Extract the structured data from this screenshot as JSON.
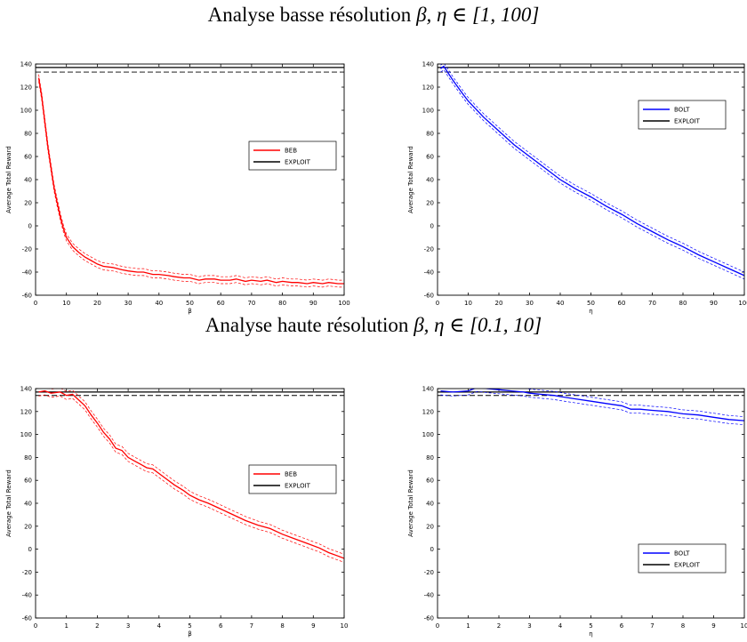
{
  "sections": [
    {
      "prefix": "Analyse basse résolution",
      "math": "β, η ∈ [1, 100]"
    },
    {
      "prefix": "Analyse haute résolution",
      "math": "β, η ∈ [0.1, 10]"
    }
  ],
  "chart_data": [
    {
      "type": "line",
      "xlabel": "β",
      "ylabel": "Average Total Reward",
      "xlim": [
        0,
        100
      ],
      "ylim": [
        -60,
        140
      ],
      "xticks": [
        0,
        10,
        20,
        30,
        40,
        50,
        60,
        70,
        80,
        90,
        100
      ],
      "yticks": [
        -60,
        -40,
        -20,
        0,
        20,
        40,
        60,
        80,
        100,
        120,
        140
      ],
      "legend": {
        "placement": "right",
        "entries": [
          "BEB",
          "EXPLOIT"
        ]
      },
      "exploit": {
        "mean": 137,
        "upper": 140.5,
        "lower": 133
      },
      "series": [
        {
          "name": "BEB",
          "color": "#ff0000",
          "band": 3,
          "x": [
            1,
            2,
            3,
            4,
            5,
            6,
            7,
            8,
            9,
            10,
            12,
            14,
            16,
            18,
            20,
            22,
            25,
            28,
            30,
            33,
            35,
            38,
            40,
            43,
            45,
            48,
            50,
            53,
            55,
            58,
            60,
            63,
            65,
            68,
            70,
            73,
            75,
            78,
            80,
            83,
            85,
            88,
            90,
            93,
            95,
            98,
            100
          ],
          "y": [
            128,
            112,
            90,
            68,
            50,
            33,
            20,
            8,
            -2,
            -10,
            -18,
            -23,
            -27,
            -30,
            -33,
            -35,
            -36,
            -38,
            -39,
            -40,
            -40,
            -42,
            -42,
            -43,
            -44,
            -45,
            -45,
            -47,
            -46,
            -46,
            -47,
            -47,
            -46,
            -48,
            -47,
            -48,
            -47,
            -49,
            -48,
            -49,
            -49,
            -50,
            -49,
            -50,
            -49,
            -50,
            -50
          ]
        }
      ]
    },
    {
      "type": "line",
      "xlabel": "η",
      "ylabel": "Average Total Reward",
      "xlim": [
        0,
        100
      ],
      "ylim": [
        -60,
        140
      ],
      "xticks": [
        0,
        10,
        20,
        30,
        40,
        50,
        60,
        70,
        80,
        90,
        100
      ],
      "yticks": [
        -60,
        -40,
        -20,
        0,
        20,
        40,
        60,
        80,
        100,
        120,
        140
      ],
      "legend": {
        "placement": "top-right",
        "entries": [
          "BOLT",
          "EXPLOIT"
        ]
      },
      "exploit": {
        "mean": 137,
        "upper": 140.5,
        "lower": 133
      },
      "series": [
        {
          "name": "BOLT",
          "color": "#0000ff",
          "band": 3,
          "x": [
            1,
            2,
            3,
            5,
            8,
            10,
            15,
            20,
            25,
            30,
            35,
            40,
            45,
            50,
            55,
            60,
            65,
            70,
            75,
            80,
            85,
            90,
            95,
            100
          ],
          "y": [
            136,
            138,
            134,
            126,
            115,
            108,
            94,
            82,
            70,
            60,
            50,
            40,
            32,
            25,
            17,
            10,
            2,
            -5,
            -12,
            -18,
            -25,
            -31,
            -37,
            -43
          ]
        }
      ]
    },
    {
      "type": "line",
      "xlabel": "β",
      "ylabel": "Average Total Reward",
      "xlim": [
        0,
        10
      ],
      "ylim": [
        -60,
        140
      ],
      "xticks": [
        0,
        1,
        2,
        3,
        4,
        5,
        6,
        7,
        8,
        9,
        10
      ],
      "yticks": [
        -60,
        -40,
        -20,
        0,
        20,
        40,
        60,
        80,
        100,
        120,
        140
      ],
      "legend": {
        "placement": "right",
        "entries": [
          "BEB",
          "EXPLOIT"
        ]
      },
      "exploit": {
        "mean": 137,
        "upper": 140.5,
        "lower": 134
      },
      "series": [
        {
          "name": "BEB",
          "color": "#ff0000",
          "band": 3.5,
          "x": [
            0.1,
            0.3,
            0.5,
            0.8,
            1.0,
            1.2,
            1.4,
            1.6,
            1.8,
            2.0,
            2.2,
            2.4,
            2.6,
            2.8,
            3.0,
            3.2,
            3.4,
            3.6,
            3.8,
            4.0,
            4.2,
            4.5,
            4.8,
            5.0,
            5.3,
            5.6,
            6.0,
            6.4,
            6.8,
            7.2,
            7.6,
            8.0,
            8.4,
            8.8,
            9.2,
            9.5,
            9.8,
            10.0
          ],
          "y": [
            137,
            138,
            136,
            137,
            134,
            135,
            130,
            125,
            117,
            110,
            102,
            96,
            88,
            86,
            80,
            77,
            74,
            71,
            70,
            66,
            62,
            56,
            51,
            47,
            43,
            40,
            35,
            30,
            25,
            21,
            18,
            13,
            9,
            5,
            1,
            -3,
            -6,
            -8
          ]
        }
      ]
    },
    {
      "type": "line",
      "xlabel": "η",
      "ylabel": "Average Total Reward",
      "xlim": [
        0,
        10
      ],
      "ylim": [
        -60,
        140
      ],
      "xticks": [
        0,
        1,
        2,
        3,
        4,
        5,
        6,
        7,
        8,
        9,
        10
      ],
      "yticks": [
        -60,
        -40,
        -20,
        0,
        20,
        40,
        60,
        80,
        100,
        120,
        140
      ],
      "legend": {
        "placement": "right",
        "entries": [
          "BOLT",
          "EXPLOIT"
        ]
      },
      "exploit": {
        "mean": 137,
        "upper": 140.5,
        "lower": 134
      },
      "series": [
        {
          "name": "BOLT",
          "color": "#0000ff",
          "band": 3.5,
          "x": [
            0.1,
            0.5,
            1.0,
            1.3,
            1.6,
            2.0,
            2.4,
            2.8,
            3.0,
            3.4,
            3.8,
            4.0,
            4.5,
            5.0,
            5.5,
            6.0,
            6.3,
            6.6,
            7.0,
            7.5,
            8.0,
            8.5,
            9.0,
            9.5,
            10.0
          ],
          "y": [
            138,
            137,
            138,
            141,
            140,
            139,
            138,
            137,
            136,
            135,
            134,
            133,
            131,
            129,
            127,
            125,
            122,
            122,
            121,
            120,
            118,
            117,
            115,
            113,
            112
          ]
        }
      ]
    }
  ]
}
